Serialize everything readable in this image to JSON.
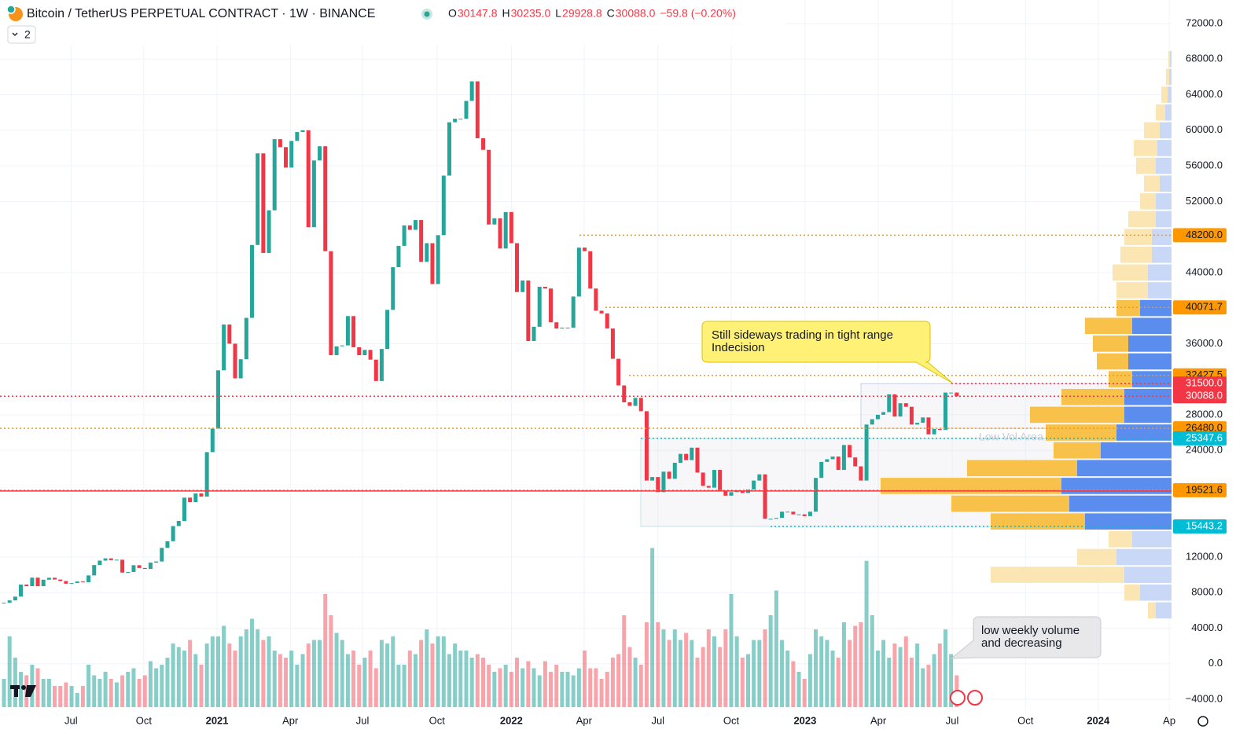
{
  "header": {
    "symbol": "Bitcoin / TetherUS PERPETUAL CONTRACT · 1W · BINANCE",
    "ohlc": [
      {
        "key": "O",
        "text": "30147.8"
      },
      {
        "key": "H",
        "text": "30235.0"
      },
      {
        "key": "L",
        "text": "29928.8"
      },
      {
        "key": "C",
        "text": "30088.0"
      }
    ],
    "change": "−59.8 (−0.20%)",
    "badge": "2"
  },
  "chart_data": {
    "type": "candlestick",
    "xlim": [
      -0.7,
      207.1
    ],
    "ylim": [
      -4000,
      72000
    ],
    "yticks": [
      {
        "value": 72000,
        "label": "72000.0"
      },
      {
        "value": 68000,
        "label": "68000.0"
      },
      {
        "value": 64000,
        "label": "64000.0"
      },
      {
        "value": 60000,
        "label": "60000.0"
      },
      {
        "value": 56000,
        "label": "56000.0"
      },
      {
        "value": 52000,
        "label": "52000.0"
      },
      {
        "value": 44000,
        "label": "44000.0"
      },
      {
        "value": 36000,
        "label": "36000.0"
      },
      {
        "value": 28000,
        "label": "28000.0"
      },
      {
        "value": 24000,
        "label": "24000.0"
      },
      {
        "value": 12000,
        "label": "12000.0"
      },
      {
        "value": 8000,
        "label": "8000.0"
      },
      {
        "value": 4000,
        "label": "4000.0"
      },
      {
        "value": 0,
        "label": "0.0"
      },
      {
        "value": -4000,
        "label": "−4000.0"
      }
    ],
    "xticks": [
      {
        "value": 11.9,
        "label": "Jul"
      },
      {
        "value": 24.8,
        "label": "Oct"
      },
      {
        "value": 37.8,
        "label": "2021"
      },
      {
        "value": 50.8,
        "label": "Apr"
      },
      {
        "value": 63.6,
        "label": "Jul"
      },
      {
        "value": 76.8,
        "label": "Oct"
      },
      {
        "value": 90.0,
        "label": "2022"
      },
      {
        "value": 102.9,
        "label": "Apr"
      },
      {
        "value": 116.0,
        "label": "Jul"
      },
      {
        "value": 129.0,
        "label": "Oct"
      },
      {
        "value": 142.1,
        "label": "2023"
      },
      {
        "value": 155.1,
        "label": "Apr"
      },
      {
        "value": 168.2,
        "label": "Jul"
      },
      {
        "value": 181.2,
        "label": "Oct"
      },
      {
        "value": 194.1,
        "label": "2024"
      },
      {
        "value": 206.7,
        "label": "Ap"
      }
    ],
    "up_color": "#26a69a",
    "down_color": "#f23645",
    "close": [
      6860,
      7120,
      7550,
      8900,
      8720,
      9680,
      8720,
      9450,
      9670,
      9470,
      9300,
      9000,
      9070,
      9250,
      9160,
      9930,
      11100,
      11600,
      11850,
      11650,
      11700,
      10250,
      10320,
      11080,
      10770,
      10670,
      11370,
      11500,
      13030,
      13780,
      15480,
      16060,
      18680,
      18180,
      19150,
      18800,
      23800,
      26450,
      33000,
      38150,
      36000,
      32100,
      34250,
      38900,
      47100,
      57400,
      46200,
      51000,
      59000,
      58100,
      55800,
      58800,
      59800,
      60000,
      49100,
      56600,
      58200,
      46400,
      34700,
      35700,
      35800,
      39100,
      35600,
      34700,
      35300,
      34200,
      31800,
      35400,
      39800,
      44600,
      47000,
      49300,
      48800,
      49900,
      45200,
      47300,
      42700,
      48200,
      54900,
      60900,
      61300,
      61300,
      63300,
      65500,
      59100,
      57800,
      49400,
      50100,
      46700,
      50800,
      47300,
      41800,
      43100,
      36300,
      37900,
      42400,
      42200,
      38400,
      37700,
      37800,
      37800,
      41300,
      46800,
      46400,
      42200,
      39700,
      39400,
      37700,
      34300,
      31300,
      29400,
      29000,
      29900,
      28400,
      20600,
      21000,
      19300,
      21600,
      20800,
      22600,
      23600,
      22900,
      24300,
      21500,
      20000,
      19800,
      21800,
      19400,
      18900,
      19300,
      19400,
      19200,
      19600,
      20600,
      21300,
      16300,
      16300,
      16400,
      17100,
      17100,
      16800,
      16800,
      16600,
      17100,
      20900,
      22700,
      23000,
      23300,
      21800,
      24600,
      23200,
      22200,
      20600,
      26900,
      27500,
      28000,
      28300,
      30300,
      27800,
      29300,
      28900,
      26900,
      27100,
      27700,
      25800,
      26400,
      26300,
      30500,
      30500,
      30088
    ],
    "volume": [
      40,
      100,
      70,
      50,
      45,
      60,
      55,
      40,
      40,
      30,
      30,
      35,
      30,
      20,
      30,
      60,
      45,
      40,
      50,
      40,
      35,
      45,
      50,
      55,
      40,
      45,
      65,
      55,
      60,
      70,
      90,
      85,
      80,
      95,
      75,
      60,
      90,
      100,
      100,
      115,
      90,
      80,
      100,
      110,
      125,
      110,
      95,
      100,
      80,
      75,
      70,
      80,
      60,
      75,
      90,
      95,
      95,
      160,
      130,
      105,
      95,
      75,
      80,
      60,
      70,
      80,
      55,
      95,
      90,
      100,
      60,
      60,
      80,
      75,
      95,
      110,
      90,
      100,
      100,
      75,
      90,
      80,
      80,
      70,
      75,
      70,
      60,
      50,
      55,
      60,
      50,
      70,
      55,
      65,
      55,
      45,
      65,
      50,
      60,
      50,
      50,
      45,
      55,
      80,
      55,
      55,
      40,
      50,
      70,
      75,
      130,
      85,
      70,
      60,
      120,
      225,
      120,
      110,
      95,
      110,
      95,
      105,
      95,
      70,
      85,
      110,
      100,
      85,
      110,
      160,
      100,
      70,
      75,
      95,
      95,
      110,
      130,
      165,
      95,
      80,
      65,
      50,
      40,
      75,
      110,
      100,
      95,
      80,
      70,
      120,
      95,
      115,
      120,
      207,
      130,
      80,
      95,
      70,
      90,
      85,
      100,
      70,
      90,
      55,
      60,
      75,
      90,
      110,
      75,
      45
    ],
    "levels": [
      {
        "value": 48200,
        "label": "48200.0",
        "color": "#ff9800"
      },
      {
        "value": 40071.7,
        "label": "40071.7",
        "color": "#ff9800"
      },
      {
        "value": 32427.5,
        "label": "32427.5",
        "color": "#ff9800"
      },
      {
        "value": 31500,
        "label": "31500.0",
        "color": "#f23645"
      },
      {
        "value": 30088,
        "label": "30088.0",
        "color": "#f23645"
      },
      {
        "value": 26480,
        "label": "26480.0",
        "color": "#ff9800"
      },
      {
        "value": 25347.6,
        "label": "25347.6",
        "color": "#00bcd4"
      },
      {
        "value": 19521.6,
        "label": "19521.6",
        "color": "#ff9800"
      },
      {
        "value": 15443.2,
        "label": "15443.2",
        "color": "#00bcd4"
      }
    ],
    "profile": {
      "prices": [
        6000,
        8000,
        10000,
        12000,
        14000,
        16000,
        18000,
        20000,
        22000,
        24000,
        26000,
        28000,
        30000,
        32000,
        34000,
        36000,
        38000,
        40000,
        42000,
        44000,
        46000,
        48000,
        50000,
        52000,
        54000,
        56000,
        58000,
        60000,
        62000,
        64000,
        66000,
        68000
      ],
      "up": [
        20,
        40,
        60,
        70,
        50,
        110,
        130,
        140,
        120,
        90,
        70,
        60,
        60,
        50,
        55,
        55,
        50,
        40,
        30,
        30,
        25,
        25,
        20,
        20,
        15,
        20,
        18,
        15,
        8,
        5,
        3,
        2
      ],
      "down": [
        10,
        20,
        170,
        50,
        30,
        120,
        150,
        230,
        140,
        60,
        90,
        120,
        80,
        30,
        40,
        45,
        60,
        30,
        40,
        45,
        40,
        35,
        35,
        20,
        20,
        25,
        30,
        20,
        12,
        8,
        4,
        2
      ],
      "value_area": [
        15000,
        41000
      ]
    },
    "annotations": [
      "Still sideways trading in tight range",
      "Indecision",
      "low weekly volume",
      "and decreasing",
      "Low Vol Area"
    ]
  }
}
